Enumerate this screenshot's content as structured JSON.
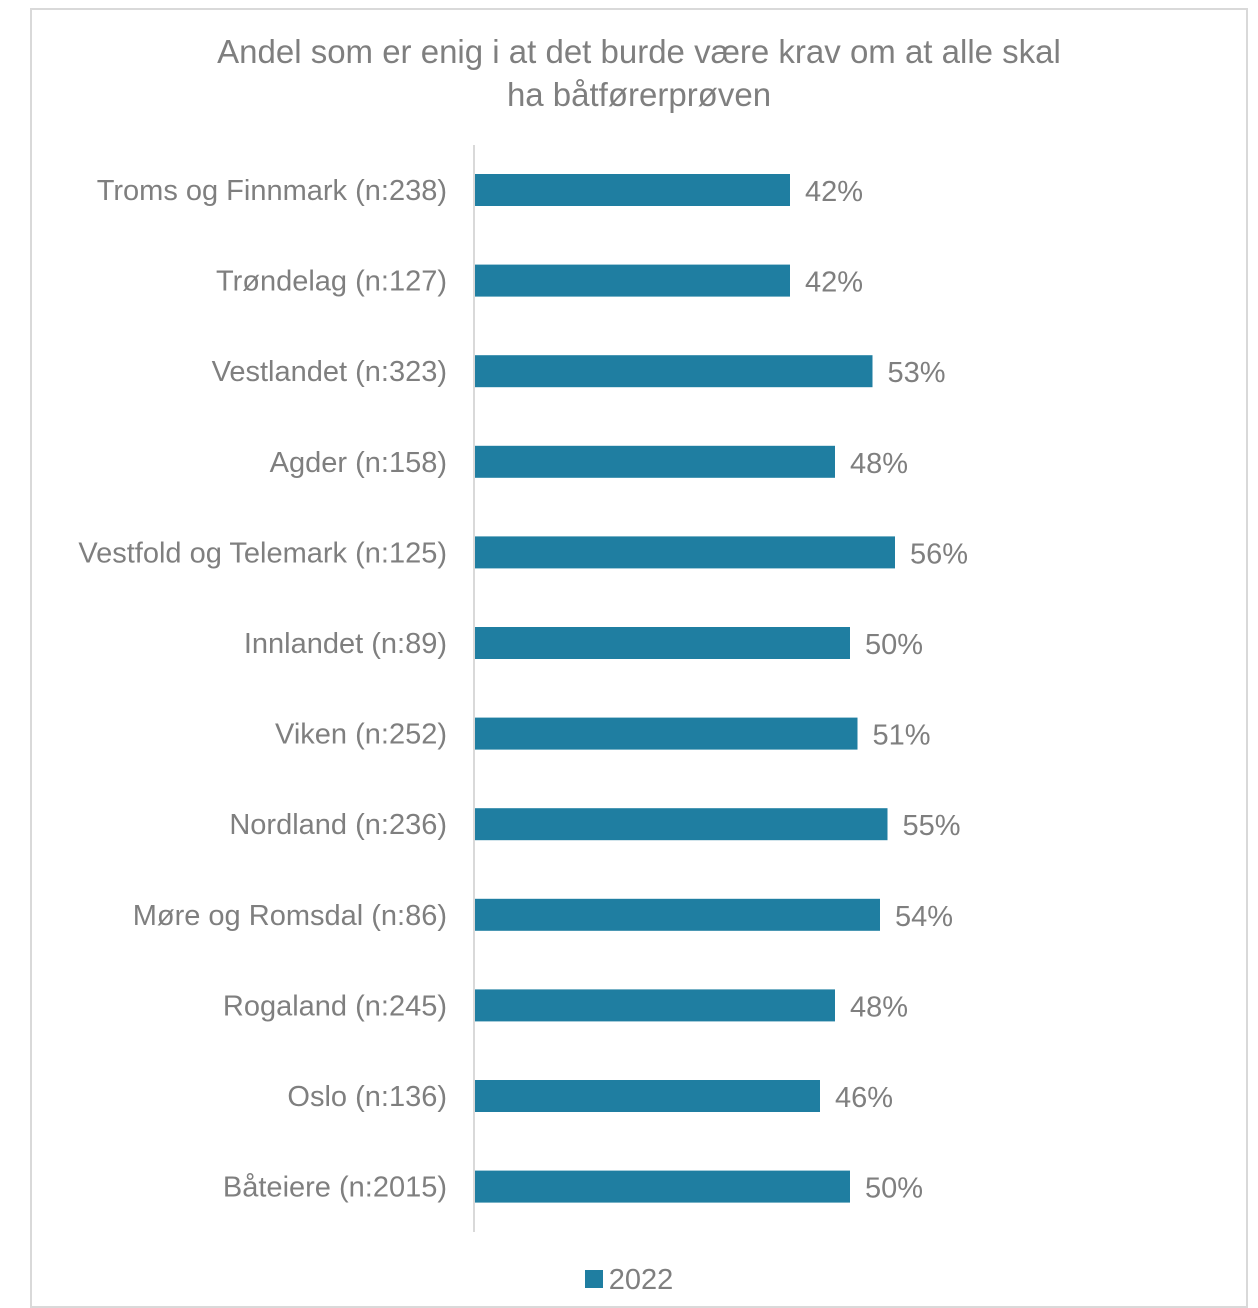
{
  "colors": {
    "bar": "#1f7ea1",
    "text": "#7f7f7f",
    "axis": "#d9d9d9"
  },
  "chart_data": {
    "type": "bar",
    "orientation": "horizontal",
    "title": "Andel som er enig i at det burde være krav om at alle skal\nha båtførerprøven",
    "categories": [
      "Troms og Finnmark (n:238)",
      "Trøndelag (n:127)",
      "Vestlandet (n:323)",
      "Agder (n:158)",
      "Vestfold og Telemark (n:125)",
      "Innlandet (n:89)",
      "Viken (n:252)",
      "Nordland (n:236)",
      "Møre og Romsdal (n:86)",
      "Rogaland (n:245)",
      "Oslo (n:136)",
      "Båteiere (n:2015)"
    ],
    "series": [
      {
        "name": "2022",
        "values": [
          42,
          42,
          53,
          48,
          56,
          50,
          51,
          55,
          54,
          48,
          46,
          50
        ]
      }
    ],
    "value_labels": [
      "42%",
      "42%",
      "53%",
      "48%",
      "56%",
      "50%",
      "51%",
      "55%",
      "54%",
      "48%",
      "46%",
      "50%"
    ],
    "xlim": [
      0,
      100
    ],
    "grid": false,
    "legend_position": "bottom"
  }
}
